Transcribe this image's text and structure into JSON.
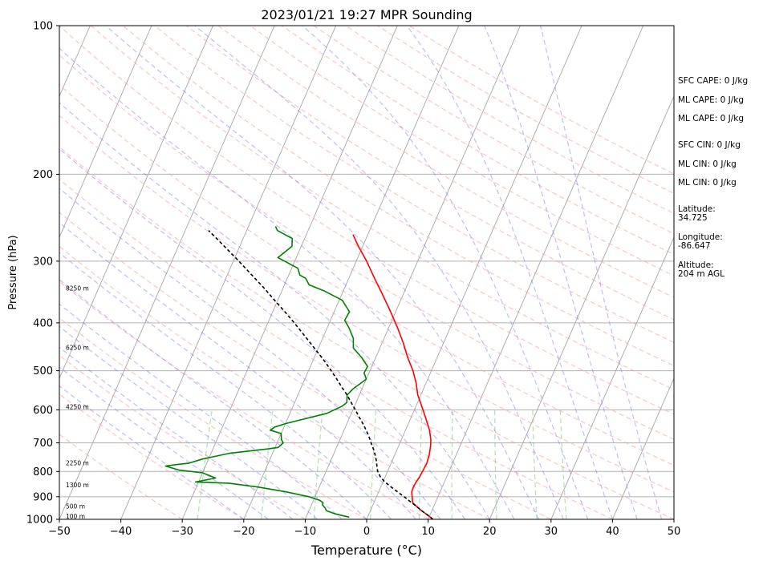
{
  "chart_data": {
    "type": "line",
    "title": "2023/01/21 19:27 MPR Sounding",
    "xlabel": "Temperature (°C)",
    "ylabel": "Pressure (hPa)",
    "xlim": [
      -50,
      50
    ],
    "ylim": [
      1000,
      100
    ],
    "y_scale": "log",
    "x_ticks": [
      "−50",
      "−40",
      "−30",
      "−20",
      "−10",
      "0",
      "10",
      "20",
      "30",
      "40",
      "50"
    ],
    "y_ticks": [
      "100",
      "200",
      "300",
      "400",
      "500",
      "600",
      "700",
      "800",
      "900",
      "1000"
    ],
    "grid": "horizontal pressure lines",
    "height_labels": [
      {
        "p": 1000,
        "text": "100 m"
      },
      {
        "p": 955,
        "text": "500 m"
      },
      {
        "p": 865,
        "text": "1300 m"
      },
      {
        "p": 780,
        "text": "2250 m"
      },
      {
        "p": 600,
        "text": "4250 m"
      },
      {
        "p": 455,
        "text": "6250 m"
      },
      {
        "p": 345,
        "text": "8250 m"
      }
    ],
    "series": [
      {
        "color": "#ff0000",
        "points": [
          [
            1000,
            10.8
          ],
          [
            980,
            9.6
          ],
          [
            960,
            8.3
          ],
          [
            940,
            7.1
          ],
          [
            925,
            6.3
          ],
          [
            900,
            5.8
          ],
          [
            880,
            5.4
          ],
          [
            860,
            5.3
          ],
          [
            840,
            5.4
          ],
          [
            820,
            5.6
          ],
          [
            800,
            5.7
          ],
          [
            770,
            5.8
          ],
          [
            740,
            5.6
          ],
          [
            710,
            5.2
          ],
          [
            690,
            4.8
          ],
          [
            660,
            3.9
          ],
          [
            630,
            2.7
          ],
          [
            600,
            1.4
          ],
          [
            560,
            -0.5
          ],
          [
            530,
            -1.6
          ],
          [
            500,
            -3.0
          ],
          [
            470,
            -4.8
          ],
          [
            440,
            -6.5
          ],
          [
            410,
            -8.5
          ],
          [
            380,
            -10.8
          ],
          [
            350,
            -13.4
          ],
          [
            325,
            -15.8
          ],
          [
            300,
            -18.3
          ],
          [
            280,
            -20.7
          ],
          [
            265,
            -22.4
          ]
        ]
      },
      {
        "color": "#008000",
        "points": [
          [
            990,
            -3.0
          ],
          [
            975,
            -5.5
          ],
          [
            960,
            -7.2
          ],
          [
            950,
            -7.5
          ],
          [
            935,
            -8.2
          ],
          [
            925,
            -8.3
          ],
          [
            915,
            -9.0
          ],
          [
            900,
            -11.0
          ],
          [
            880,
            -15.0
          ],
          [
            860,
            -20.0
          ],
          [
            845,
            -25.0
          ],
          [
            840,
            -30.5
          ],
          [
            825,
            -27.5
          ],
          [
            805,
            -30.0
          ],
          [
            795,
            -34.0
          ],
          [
            780,
            -36.5
          ],
          [
            775,
            -35.0
          ],
          [
            770,
            -33.0
          ],
          [
            755,
            -31.0
          ],
          [
            735,
            -27.0
          ],
          [
            720,
            -21.0
          ],
          [
            715,
            -19.5
          ],
          [
            700,
            -19.0
          ],
          [
            690,
            -19.5
          ],
          [
            670,
            -20.0
          ],
          [
            660,
            -22.0
          ],
          [
            650,
            -21.5
          ],
          [
            640,
            -20.0
          ],
          [
            610,
            -14.0
          ],
          [
            590,
            -12.0
          ],
          [
            580,
            -11.5
          ],
          [
            560,
            -12.0
          ],
          [
            545,
            -11.5
          ],
          [
            520,
            -10.0
          ],
          [
            505,
            -10.8
          ],
          [
            490,
            -10.7
          ],
          [
            470,
            -12.3
          ],
          [
            450,
            -14.3
          ],
          [
            430,
            -15.0
          ],
          [
            410,
            -16.4
          ],
          [
            395,
            -17.7
          ],
          [
            380,
            -17.5
          ],
          [
            360,
            -19.5
          ],
          [
            345,
            -23.0
          ],
          [
            335,
            -26.0
          ],
          [
            325,
            -27.0
          ],
          [
            320,
            -28.2
          ],
          [
            310,
            -29.0
          ],
          [
            295,
            -33.0
          ],
          [
            280,
            -31.5
          ],
          [
            270,
            -32.0
          ],
          [
            260,
            -35.0
          ],
          [
            255,
            -35.6
          ]
        ]
      },
      {
        "color": "#000000",
        "dashed": true,
        "points": [
          [
            1000,
            10.8
          ],
          [
            980,
            9.6
          ],
          [
            960,
            8.3
          ],
          [
            940,
            7.1
          ],
          [
            920,
            5.8
          ],
          [
            900,
            4.5
          ],
          [
            880,
            3.1
          ],
          [
            860,
            1.7
          ],
          [
            840,
            0.3
          ],
          [
            820,
            -0.8
          ],
          [
            800,
            -1.6
          ],
          [
            780,
            -2.1
          ],
          [
            760,
            -2.6
          ],
          [
            740,
            -3.2
          ],
          [
            720,
            -3.9
          ],
          [
            700,
            -4.7
          ],
          [
            680,
            -5.5
          ],
          [
            660,
            -6.4
          ],
          [
            640,
            -7.4
          ],
          [
            620,
            -8.5
          ],
          [
            600,
            -9.6
          ],
          [
            580,
            -10.8
          ],
          [
            560,
            -12.0
          ],
          [
            540,
            -13.4
          ],
          [
            520,
            -14.8
          ],
          [
            500,
            -16.3
          ],
          [
            480,
            -17.9
          ],
          [
            460,
            -19.7
          ],
          [
            440,
            -21.6
          ],
          [
            420,
            -23.6
          ],
          [
            400,
            -25.7
          ],
          [
            380,
            -28.0
          ],
          [
            360,
            -30.5
          ],
          [
            340,
            -33.1
          ],
          [
            320,
            -36.0
          ],
          [
            300,
            -39.1
          ],
          [
            280,
            -42.5
          ],
          [
            260,
            -46.2
          ]
        ]
      }
    ]
  },
  "stats": [
    {
      "text": "SFC CAPE: 0 J/kg"
    },
    {
      "text": "ML CAPE: 0 J/kg"
    },
    {
      "text": "ML CAPE: 0 J/kg"
    },
    {
      "text": "SFC CIN: 0 J/kg"
    },
    {
      "text": "ML CIN: 0 J/kg"
    },
    {
      "text": "ML CIN: 0 J/kg"
    }
  ],
  "location": {
    "latitude_label": "Latitude:",
    "latitude": "34.725",
    "longitude_label": "Longitude:",
    "longitude": "-86.647",
    "altitude_label": "Altitude:",
    "altitude": "204 m AGL"
  }
}
